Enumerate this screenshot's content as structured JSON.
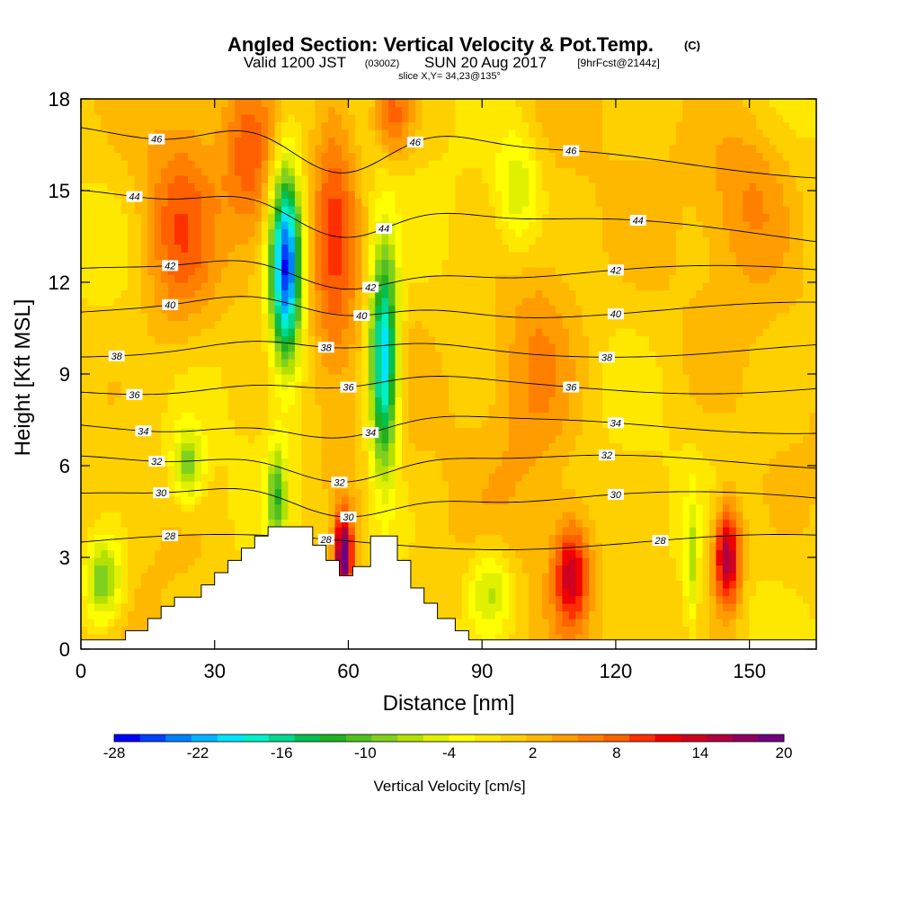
{
  "chart_data": {
    "type": "heatmap",
    "title": "Angled Section: Vertical Velocity & Pot.Temp.",
    "title_mark": "(C)",
    "subtitle": {
      "valid": "Valid 1200 JST",
      "utc": "(0300Z)",
      "date": "SUN 20 Aug 2017",
      "fcst": "[9hrFcst@2144z]"
    },
    "slice": "slice X,Y= 34,23@135°",
    "xlabel": "Distance [nm]",
    "ylabel": "Height [Kft MSL]",
    "xlim": [
      0,
      165
    ],
    "ylim": [
      0,
      18
    ],
    "x_ticks": [
      "0",
      "30",
      "60",
      "90",
      "120",
      "150"
    ],
    "x_tick_values": [
      0,
      30,
      60,
      90,
      120,
      150
    ],
    "y_ticks": [
      "0",
      "3",
      "6",
      "9",
      "12",
      "15",
      "18"
    ],
    "y_tick_values": [
      0,
      3,
      6,
      9,
      12,
      15,
      18
    ],
    "colorbar": {
      "label": "Vertical Velocity [cm/s]",
      "min": -28,
      "max": 20,
      "step": 2,
      "tick_labels": [
        "-28",
        "-22",
        "-16",
        "-10",
        "-4",
        "2",
        "8",
        "14",
        "20"
      ],
      "tick_values": [
        -28,
        -22,
        -16,
        -10,
        -4,
        2,
        8,
        14,
        20
      ],
      "colors": [
        "#0000ff",
        "#0040ff",
        "#0080ff",
        "#00b4ff",
        "#00e4ff",
        "#00f0c8",
        "#00d890",
        "#00c050",
        "#20b020",
        "#50c020",
        "#80d020",
        "#b4e000",
        "#e0f000",
        "#ffff00",
        "#ffe800",
        "#ffd000",
        "#ffb800",
        "#ff9c00",
        "#ff8000",
        "#ff6000",
        "#ff3000",
        "#f00000",
        "#d00020",
        "#b00040",
        "#900060",
        "#700080"
      ]
    },
    "theta_contours": [
      {
        "level": 28,
        "label": "28",
        "height": 3.5,
        "dip": 0
      },
      {
        "level": 30,
        "label": "30",
        "height": 4.9,
        "dip": 0.4
      },
      {
        "level": 32,
        "label": "32",
        "height": 6.1,
        "dip": 0.4
      },
      {
        "level": 34,
        "label": "34",
        "height": 7.3,
        "dip": 0.3
      },
      {
        "level": 36,
        "label": "36",
        "height": 8.6,
        "dip": 0.2
      },
      {
        "level": 38,
        "label": "38",
        "height": 9.8,
        "dip": 0.2
      },
      {
        "level": 40,
        "label": "40",
        "height": 11.1,
        "dip": 0.3
      },
      {
        "level": 42,
        "label": "42",
        "height": 12.3,
        "dip": 0.4
      },
      {
        "level": 44,
        "label": "44",
        "height": 14.3,
        "dip": 0.6
      },
      {
        "level": 46,
        "label": "46",
        "height": 16.5,
        "dip": 0.8
      }
    ],
    "terrain": [
      [
        0,
        0.3
      ],
      [
        10,
        0.3
      ],
      [
        10,
        0.6
      ],
      [
        15,
        0.6
      ],
      [
        15,
        1.0
      ],
      [
        18,
        1.0
      ],
      [
        18,
        1.4
      ],
      [
        21,
        1.4
      ],
      [
        21,
        1.7
      ],
      [
        27,
        1.7
      ],
      [
        27,
        2.1
      ],
      [
        30,
        2.1
      ],
      [
        30,
        2.5
      ],
      [
        33,
        2.5
      ],
      [
        33,
        2.9
      ],
      [
        36,
        2.9
      ],
      [
        36,
        3.3
      ],
      [
        39,
        3.3
      ],
      [
        39,
        3.7
      ],
      [
        42,
        3.7
      ],
      [
        42,
        4.0
      ],
      [
        52,
        4.0
      ],
      [
        52,
        3.4
      ],
      [
        55,
        3.4
      ],
      [
        55,
        2.9
      ],
      [
        58,
        2.9
      ],
      [
        58,
        2.4
      ],
      [
        61,
        2.4
      ],
      [
        61,
        2.7
      ],
      [
        65,
        2.7
      ],
      [
        65,
        3.7
      ],
      [
        71,
        3.7
      ],
      [
        71,
        2.9
      ],
      [
        74,
        2.9
      ],
      [
        74,
        2.0
      ],
      [
        77,
        2.0
      ],
      [
        77,
        1.5
      ],
      [
        80,
        1.5
      ],
      [
        80,
        1.0
      ],
      [
        84,
        1.0
      ],
      [
        84,
        0.6
      ],
      [
        87,
        0.6
      ],
      [
        87,
        0.3
      ],
      [
        165,
        0.3
      ]
    ],
    "w_blobs": [
      {
        "x": 46,
        "y": 12.5,
        "sx": 2.5,
        "sy": 2.2,
        "w": -30
      },
      {
        "x": 68,
        "y": 9.5,
        "sx": 2.2,
        "sy": 2.6,
        "w": -24
      },
      {
        "x": 5,
        "y": 2.2,
        "sx": 3.0,
        "sy": 1.0,
        "w": -12
      },
      {
        "x": 24,
        "y": 6.0,
        "sx": 2.5,
        "sy": 0.9,
        "w": -10
      },
      {
        "x": 44,
        "y": 5.0,
        "sx": 1.5,
        "sy": 1.2,
        "w": -11
      },
      {
        "x": 92,
        "y": 2.0,
        "sx": 3.5,
        "sy": 1.0,
        "w": -8
      },
      {
        "x": 98,
        "y": 15.0,
        "sx": 3.5,
        "sy": 1.5,
        "w": -7
      },
      {
        "x": 137,
        "y": 2.8,
        "sx": 1.0,
        "sy": 1.5,
        "w": -7
      },
      {
        "x": 59,
        "y": 3.0,
        "sx": 1.5,
        "sy": 1.0,
        "w": 22
      },
      {
        "x": 110,
        "y": 2.5,
        "sx": 2.8,
        "sy": 1.2,
        "w": 14
      },
      {
        "x": 145,
        "y": 3.0,
        "sx": 2.2,
        "sy": 1.2,
        "w": 18
      },
      {
        "x": 22,
        "y": 13.5,
        "sx": 6,
        "sy": 2.5,
        "w": 8
      },
      {
        "x": 38,
        "y": 16.0,
        "sx": 4,
        "sy": 2.0,
        "w": 7
      },
      {
        "x": 57,
        "y": 14.0,
        "sx": 3.5,
        "sy": 4.0,
        "w": 8
      },
      {
        "x": 70,
        "y": 17.5,
        "sx": 3,
        "sy": 1.0,
        "w": 8
      },
      {
        "x": 102,
        "y": 9.5,
        "sx": 7,
        "sy": 3.0,
        "w": 6
      },
      {
        "x": 150,
        "y": 15.0,
        "sx": 7,
        "sy": 2.0,
        "w": 5
      }
    ]
  }
}
